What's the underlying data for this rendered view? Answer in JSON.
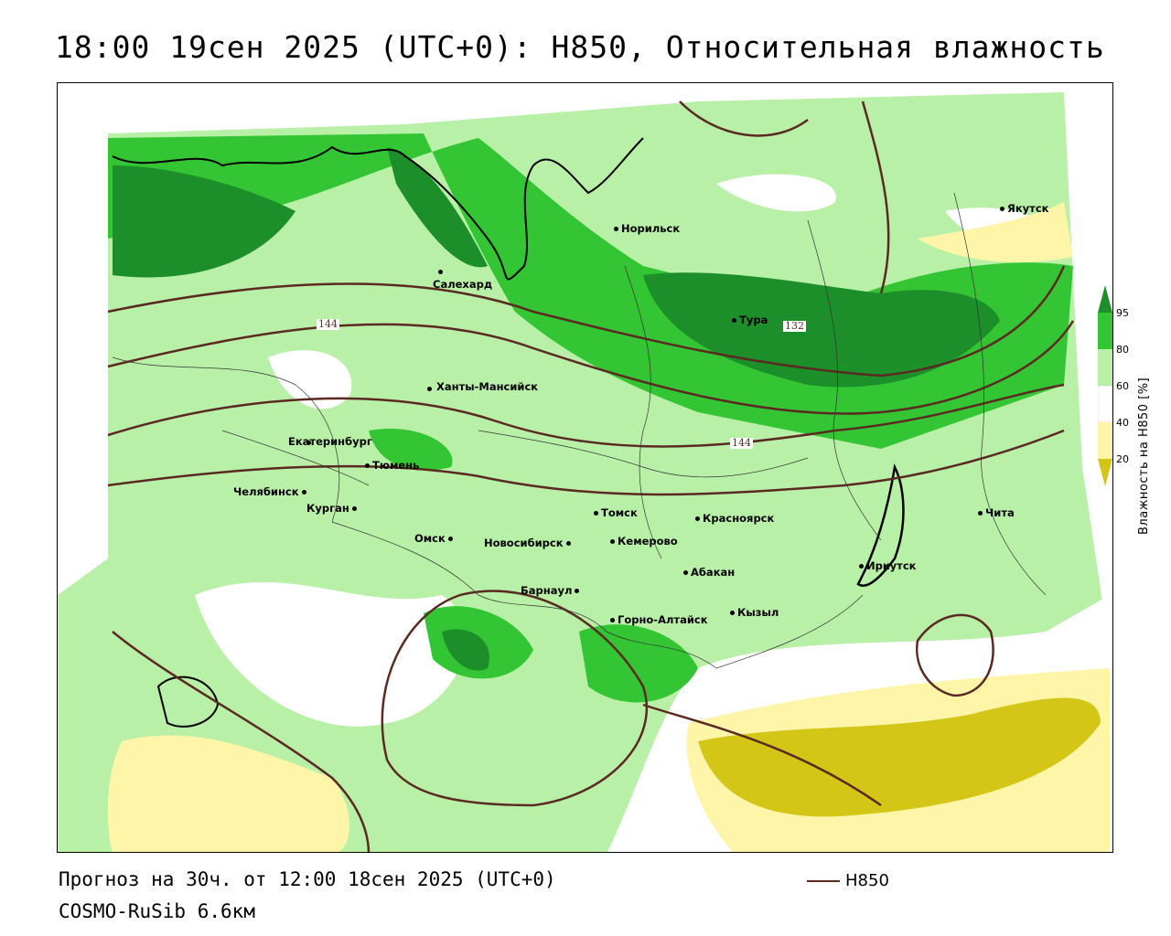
{
  "title": "18:00 19сен 2025 (UTC+0): H850, Относительная влажность",
  "footer": {
    "forecast": "Прогноз на 30ч. от 12:00 18сен 2025 (UTC+0)",
    "model": "COSMO-RuSib 6.6км"
  },
  "legend": {
    "line_label": "H850",
    "line_color": "#5a2a22"
  },
  "colorbar": {
    "title": "Влажность на H850 [%]",
    "ticks": [
      "95",
      "80",
      "60",
      "40",
      "20"
    ],
    "colors": {
      "lt20": "#d4c617",
      "20_40": "#fff5a8",
      "40_60": "#ffffff",
      "60_80": "#b9f0a8",
      "80_95": "#33c533",
      "gt95": "#1c8f2a"
    }
  },
  "contour_labels": [
    "144",
    "132",
    "144"
  ],
  "cities": [
    "Якутск",
    "Норильск",
    "Салехард",
    "Тура",
    "Ханты-Мансийск",
    "Екатеринбург",
    "Тюмень",
    "Челябинск",
    "Курган",
    "Омск",
    "Новосибирск",
    "Томск",
    "Кемерово",
    "Красноярск",
    "Абакан",
    "Барнаул",
    "Горно-Алтайск",
    "Кызыл",
    "Иркутск",
    "Чита"
  ]
}
